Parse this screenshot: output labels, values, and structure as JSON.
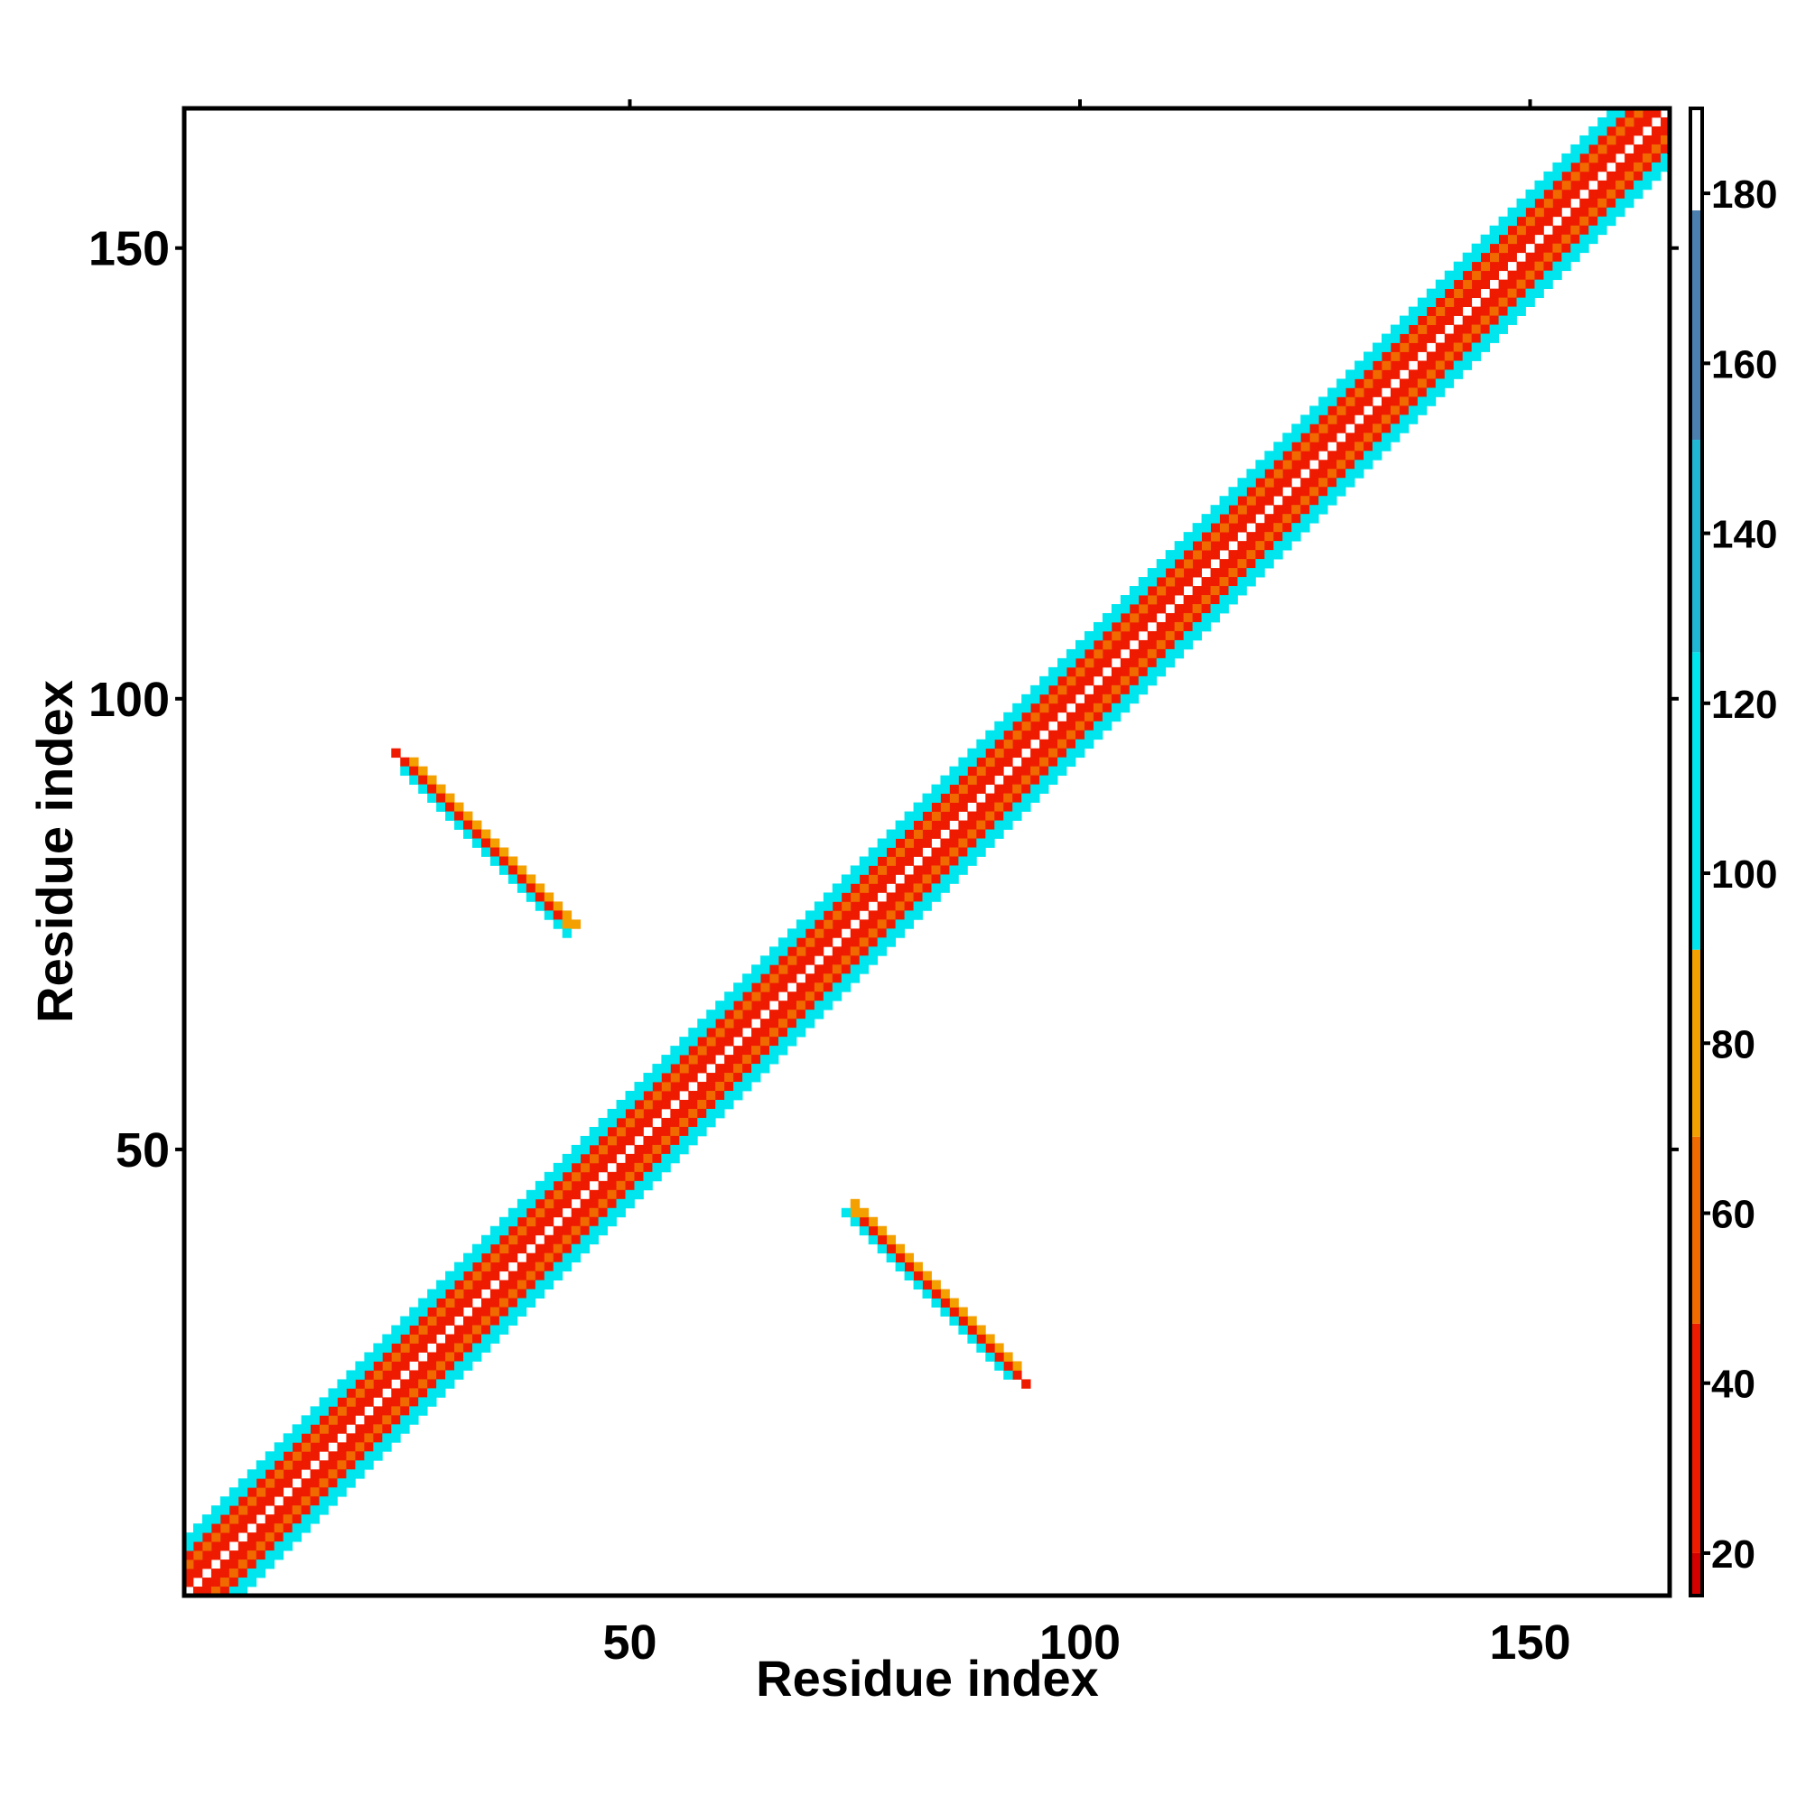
{
  "chart_data": {
    "type": "heatmap",
    "title": "",
    "xlabel": "Residue index",
    "ylabel": "Residue index",
    "xlim": [
      0.5,
      165.5
    ],
    "ylim": [
      0.5,
      165.5
    ],
    "xticks": [
      50,
      100,
      150
    ],
    "yticks": [
      50,
      100,
      150
    ],
    "x_tick_labels": [
      "50",
      "100",
      "150"
    ],
    "y_tick_labels": [
      "50",
      "100",
      "150"
    ],
    "n_residues": 165,
    "colorbar": {
      "range": [
        15,
        190
      ],
      "ticks": [
        20,
        40,
        60,
        80,
        100,
        120,
        140,
        160,
        180
      ],
      "tick_labels": [
        "20",
        "40",
        "60",
        "80",
        "100",
        "120",
        "140",
        "160",
        "180"
      ],
      "bands": [
        {
          "from": 15,
          "to": 20,
          "color": "#d40000"
        },
        {
          "from": 20,
          "to": 47,
          "color": "#ee1b00"
        },
        {
          "from": 47,
          "to": 69,
          "color": "#f06a00"
        },
        {
          "from": 69,
          "to": 91,
          "color": "#f3a000"
        },
        {
          "from": 91,
          "to": 126,
          "color": "#00e6ee"
        },
        {
          "from": 126,
          "to": 151,
          "color": "#20b7d4"
        },
        {
          "from": 151,
          "to": 178,
          "color": "#4a7fb0"
        },
        {
          "from": 178,
          "to": 190,
          "color": "#ffffff"
        }
      ]
    },
    "diagonal_band": {
      "offsets": [
        1,
        2,
        3,
        4,
        5,
        6
      ],
      "values": [
        28,
        24,
        62,
        40,
        110,
        108
      ]
    },
    "sheet_segments": [
      {
        "start": 25,
        "end": 43,
        "partner_sum": 118
      }
    ],
    "sheet_values": [
      80,
      120,
      80,
      26
    ],
    "value_note": "distance-like values in colorbar units"
  },
  "colors": {
    "frame": "#000000",
    "background": "#ffffff"
  }
}
